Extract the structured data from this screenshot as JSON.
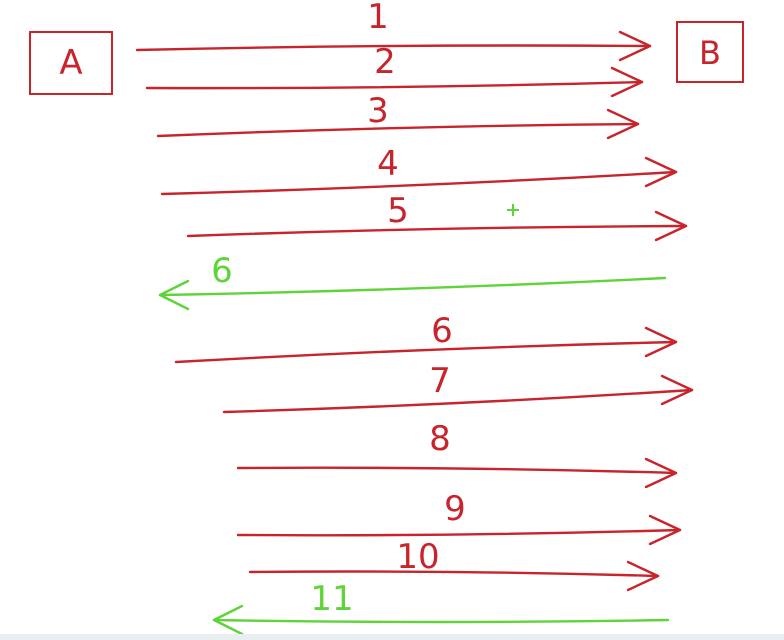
{
  "colors": {
    "red": "#c8242b",
    "green": "#5fd43a"
  },
  "nodes": {
    "a": {
      "label": "A"
    },
    "b": {
      "label": "B"
    }
  },
  "arrows": [
    {
      "label": "1",
      "direction": "right",
      "color": "red"
    },
    {
      "label": "2",
      "direction": "right",
      "color": "red"
    },
    {
      "label": "3",
      "direction": "right",
      "color": "red"
    },
    {
      "label": "4",
      "direction": "right",
      "color": "red"
    },
    {
      "label": "5",
      "direction": "right",
      "color": "red"
    },
    {
      "label": "6",
      "direction": "left",
      "color": "green"
    },
    {
      "label": "6",
      "direction": "right",
      "color": "red"
    },
    {
      "label": "7",
      "direction": "right",
      "color": "red"
    },
    {
      "label": "8",
      "direction": "right",
      "color": "red"
    },
    {
      "label": "9",
      "direction": "right",
      "color": "red"
    },
    {
      "label": "10",
      "direction": "right",
      "color": "red"
    },
    {
      "label": "11",
      "direction": "left",
      "color": "green"
    }
  ],
  "cursor_icon": "crosshair-cursor-icon"
}
